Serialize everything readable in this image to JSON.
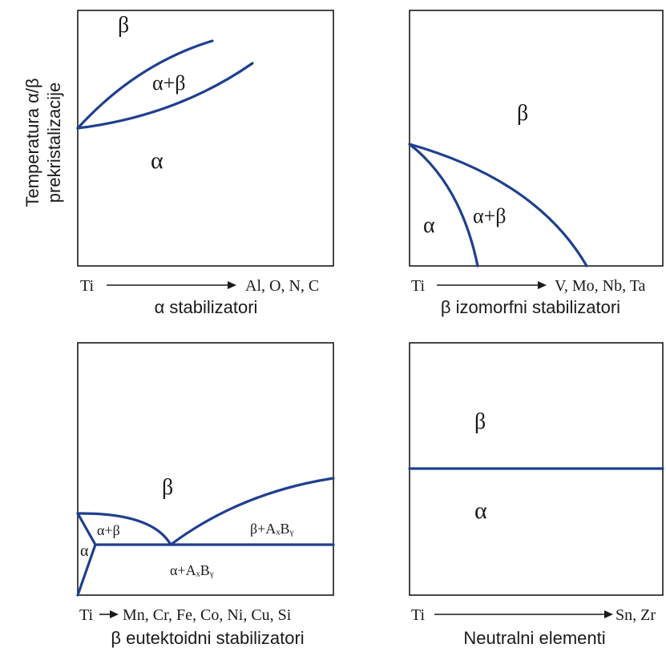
{
  "y_axis_label": {
    "line1": "Temperatura α/β",
    "line2": "prekristalizacije"
  },
  "panels": [
    {
      "phase_labels": [
        "β",
        "α+β",
        "α"
      ],
      "x_start": "Ti",
      "x_end": "Al, O, N, C",
      "caption": "α stabilizatori"
    },
    {
      "phase_labels": [
        "β",
        "α",
        "α+β"
      ],
      "x_start": "Ti",
      "x_end": "V, Mo, Nb, Ta",
      "caption": "β izomorfni stabilizatori"
    },
    {
      "phase_labels": [
        "β",
        "α+β",
        "α",
        "β+AₓBᵧ",
        "α+AₓBᵧ"
      ],
      "x_start": "Ti",
      "x_end": "Mn, Cr, Fe, Co, Ni, Cu, Si",
      "caption": "β eutektoidni stabilizatori"
    },
    {
      "phase_labels": [
        "β",
        "α"
      ],
      "x_start": "Ti",
      "x_end": "Sn, Zr",
      "caption": "Neutralni elementi"
    }
  ],
  "colors": {
    "phase_boundary": "#1f3f8f",
    "frame": "#1a1a1a"
  }
}
